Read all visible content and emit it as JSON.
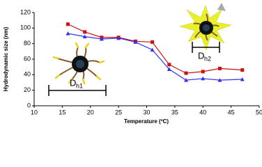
{
  "chart_data": {
    "type": "line",
    "x_label": "Temperature (ºC)",
    "y_label": "Hydrodynamic size (nm)",
    "x": [
      16,
      19,
      22,
      25,
      28,
      31,
      34,
      37,
      40,
      43,
      47
    ],
    "series": [
      {
        "color": "#cc1111",
        "marker": "square",
        "values": [
          105,
          95,
          88,
          88,
          83,
          82,
          53,
          42,
          44,
          48,
          46
        ]
      },
      {
        "color": "#3333ee",
        "marker": "triangle",
        "values": [
          93,
          89,
          86,
          87,
          82,
          72,
          47,
          33,
          35,
          33,
          34
        ]
      }
    ],
    "xlim": [
      10,
      50
    ],
    "xticks": [
      10,
      15,
      20,
      25,
      30,
      35,
      40,
      45,
      50
    ],
    "ylim": [
      0,
      120
    ],
    "yticks": [
      0,
      20,
      40,
      60,
      80,
      100,
      120
    ],
    "grid": false,
    "annotations": [
      {
        "text": "D",
        "subscript": "h1"
      },
      {
        "text": "D",
        "subscript": "h2"
      }
    ]
  }
}
